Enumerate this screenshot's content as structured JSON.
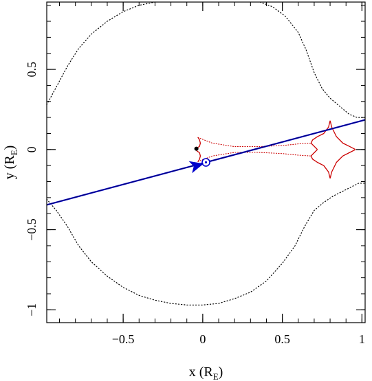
{
  "chart_data": {
    "type": "line",
    "xlabel": "x (R",
    "xlabel_sub": "E",
    "xlabel_close": ")",
    "ylabel": "y (R",
    "ylabel_sub": "E",
    "ylabel_close": ")",
    "xlim": [
      -0.98,
      1.02
    ],
    "ylim": [
      -1.08,
      0.92
    ],
    "xticks": [
      {
        "value": -0.5,
        "label": "−0.5"
      },
      {
        "value": 0,
        "label": "0"
      },
      {
        "value": 0.5,
        "label": "0.5"
      },
      {
        "value": 1,
        "label": "1"
      }
    ],
    "yticks": [
      {
        "value": -1,
        "label": "−1"
      },
      {
        "value": -0.5,
        "label": "−0.5"
      },
      {
        "value": 0,
        "label": "0"
      },
      {
        "value": 0.5,
        "label": "0.5"
      }
    ],
    "minor_step": 0.1,
    "colors": {
      "critical_curve": "#000000",
      "caustic": "#cc0000",
      "trajectory": "#0000cc",
      "trajectory_core": "#000055"
    },
    "critical_curve": {
      "style": "dotted",
      "segments": [
        [
          [
            -0.98,
            0.28
          ],
          [
            -0.92,
            0.39
          ],
          [
            -0.85,
            0.52
          ],
          [
            -0.78,
            0.63
          ],
          [
            -0.7,
            0.72
          ],
          [
            -0.6,
            0.8
          ],
          [
            -0.5,
            0.86
          ],
          [
            -0.4,
            0.9
          ],
          [
            -0.3,
            0.92
          ]
        ],
        [
          [
            0.36,
            0.92
          ],
          [
            0.44,
            0.89
          ],
          [
            0.52,
            0.83
          ],
          [
            0.6,
            0.73
          ],
          [
            0.65,
            0.62
          ],
          [
            0.7,
            0.48
          ],
          [
            0.75,
            0.38
          ],
          [
            0.8,
            0.32
          ],
          [
            0.86,
            0.27
          ],
          [
            0.92,
            0.22
          ],
          [
            0.97,
            0.2
          ],
          [
            1.02,
            0.2
          ]
        ],
        [
          [
            -0.98,
            -0.31
          ],
          [
            -0.92,
            -0.38
          ],
          [
            -0.85,
            -0.48
          ],
          [
            -0.78,
            -0.6
          ],
          [
            -0.7,
            -0.7
          ],
          [
            -0.6,
            -0.79
          ],
          [
            -0.5,
            -0.86
          ],
          [
            -0.4,
            -0.91
          ],
          [
            -0.3,
            -0.94
          ],
          [
            -0.2,
            -0.96
          ],
          [
            -0.1,
            -0.97
          ],
          [
            0.0,
            -0.97
          ],
          [
            0.1,
            -0.96
          ],
          [
            0.2,
            -0.93
          ],
          [
            0.3,
            -0.89
          ],
          [
            0.4,
            -0.82
          ],
          [
            0.5,
            -0.71
          ],
          [
            0.58,
            -0.6
          ],
          [
            0.64,
            -0.48
          ],
          [
            0.7,
            -0.38
          ],
          [
            0.76,
            -0.33
          ],
          [
            0.82,
            -0.29
          ],
          [
            0.88,
            -0.26
          ],
          [
            0.94,
            -0.23
          ],
          [
            0.98,
            -0.21
          ],
          [
            1.02,
            -0.21
          ]
        ]
      ]
    },
    "caustic_solid": [
      [
        [
          -0.03,
          0.075
        ],
        [
          -0.02,
          0.06
        ],
        [
          -0.015,
          0.04
        ],
        [
          -0.02,
          0.02
        ],
        [
          -0.035,
          0.01
        ],
        [
          -0.045,
          0.0
        ],
        [
          -0.035,
          -0.01
        ],
        [
          -0.02,
          -0.02
        ],
        [
          -0.015,
          -0.04
        ],
        [
          -0.02,
          -0.06
        ],
        [
          -0.03,
          -0.075
        ]
      ],
      [
        [
          0.8,
          0.18
        ],
        [
          0.79,
          0.14
        ],
        [
          0.76,
          0.1
        ],
        [
          0.72,
          0.08
        ],
        [
          0.69,
          0.06
        ],
        [
          0.68,
          0.04
        ],
        [
          0.7,
          0.02
        ],
        [
          0.72,
          0.0
        ]
      ],
      [
        [
          0.72,
          0.0
        ],
        [
          0.7,
          -0.02
        ],
        [
          0.68,
          -0.04
        ],
        [
          0.69,
          -0.06
        ],
        [
          0.72,
          -0.08
        ],
        [
          0.76,
          -0.1
        ],
        [
          0.79,
          -0.14
        ],
        [
          0.8,
          -0.18
        ]
      ],
      [
        [
          0.8,
          0.18
        ],
        [
          0.81,
          0.14
        ],
        [
          0.84,
          0.08
        ],
        [
          0.88,
          0.04
        ],
        [
          0.92,
          0.02
        ],
        [
          0.96,
          0.0
        ]
      ],
      [
        [
          0.8,
          -0.18
        ],
        [
          0.81,
          -0.14
        ],
        [
          0.84,
          -0.08
        ],
        [
          0.88,
          -0.04
        ],
        [
          0.92,
          -0.02
        ],
        [
          0.96,
          0.0
        ]
      ]
    ],
    "caustic_dotted": [
      [
        [
          -0.03,
          0.075
        ],
        [
          0.06,
          0.04
        ],
        [
          0.2,
          0.018
        ],
        [
          0.35,
          0.018
        ],
        [
          0.5,
          0.025
        ],
        [
          0.6,
          0.035
        ],
        [
          0.68,
          0.04
        ]
      ],
      [
        [
          -0.03,
          -0.075
        ],
        [
          0.06,
          -0.04
        ],
        [
          0.2,
          -0.018
        ],
        [
          0.35,
          -0.018
        ],
        [
          0.5,
          -0.025
        ],
        [
          0.6,
          -0.035
        ],
        [
          0.68,
          -0.04
        ]
      ]
    ],
    "trajectory": [
      [
        -0.98,
        -0.345
      ],
      [
        1.02,
        0.185
      ]
    ],
    "lens_point": {
      "x": -0.04,
      "y": 0.005
    },
    "source_marker": {
      "x": 0.02,
      "y": -0.08
    },
    "direction_arrow": {
      "x": -0.04,
      "y": -0.1
    }
  }
}
